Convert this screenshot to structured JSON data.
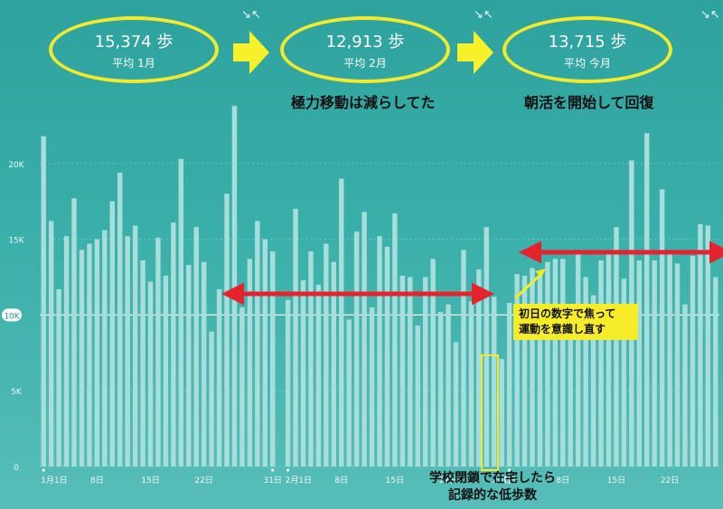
{
  "summary": {
    "items": [
      {
        "steps": "15,374 歩",
        "period": "平均 1月"
      },
      {
        "steps": "12,913 歩",
        "period": "平均 2月"
      },
      {
        "steps": "13,715 歩",
        "period": "平均 今月"
      }
    ],
    "expand_icon": "collapse-arrows-icon",
    "arrow_icon": "yellow-right-arrow-icon"
  },
  "annotations": {
    "feb_caption": "極力移動は減らしてた",
    "mar_caption": "朝活を開始して回復",
    "note_line1": "初日の数字で焦って",
    "note_line2": "運動を意識し直す",
    "bottom_line1": "学校閉鎖で在宅したら",
    "bottom_line2": "記録的な低歩数"
  },
  "colors": {
    "background": "#3aafa9",
    "bar": "#a7dedb",
    "highlight": "#f2ea2d",
    "arrow": "#e5232f"
  },
  "chart_data": {
    "type": "bar",
    "ylim": [
      0,
      25000
    ],
    "yticks": [
      "0",
      "5K",
      "10K",
      "15K",
      "20K"
    ],
    "reference_line": 10000,
    "xticks": [
      "1月1日",
      "8日",
      "15日",
      "22日",
      "31日",
      "2月1日",
      "8日",
      "15日",
      "22日",
      "29日",
      "1日",
      "8日",
      "15日",
      "22日"
    ],
    "series": [
      {
        "values": [
          21800,
          16200,
          11700,
          15200,
          17700,
          14300,
          14700,
          15000,
          15600,
          17500,
          19400,
          15200,
          15900,
          13600,
          12200,
          15100,
          12600,
          16100,
          20300,
          13300,
          15800,
          13500,
          8900,
          11700,
          18000,
          23800,
          10500,
          13700,
          16200,
          15000,
          14200,
          null,
          11000,
          17000,
          12300,
          14200,
          12000,
          14700,
          13500,
          19000,
          9700,
          15500,
          16800,
          10500,
          15200,
          14500,
          16700,
          12600,
          12500,
          9300,
          12500,
          13700,
          10200,
          10700,
          8200,
          14300,
          10900,
          13000,
          15800,
          11200,
          7100,
          10800,
          12700,
          12600,
          13100,
          12600,
          13500,
          13700,
          13700,
          10400,
          14200,
          12500,
          11300,
          13600,
          14100,
          15800,
          12400,
          20200,
          13600,
          22000,
          13600,
          18300,
          14200,
          13400,
          10700,
          13900,
          16000,
          15900,
          12500
        ]
      }
    ]
  }
}
